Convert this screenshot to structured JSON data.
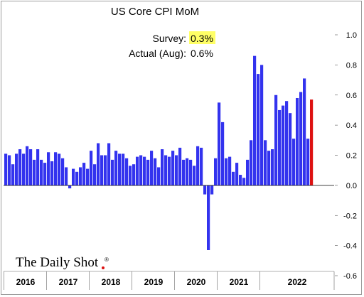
{
  "chart_data": {
    "type": "bar",
    "title": "US Core CPI MoM",
    "xlabel": "",
    "ylabel": "",
    "ylim": [
      -0.6,
      1.0
    ],
    "yticks": [
      {
        "value": 1.0,
        "label": "1.0"
      },
      {
        "value": 0.8,
        "label": "0.8"
      },
      {
        "value": 0.6,
        "label": "0.6"
      },
      {
        "value": 0.4,
        "label": "0.4"
      },
      {
        "value": 0.2,
        "label": "0.2"
      },
      {
        "value": 0.0,
        "label": "0.0"
      },
      {
        "value": -0.2,
        "label": "-0.2"
      },
      {
        "value": -0.4,
        "label": "-0.4"
      },
      {
        "value": -0.6,
        "label": "-0.6"
      }
    ],
    "year_labels": [
      "2016",
      "2017",
      "2018",
      "2019",
      "2020",
      "2021",
      "2022"
    ],
    "grid": false,
    "colors": {
      "bars": "#3333ee",
      "highlight": "#dd1111",
      "survey_highlight": "#ffff66"
    },
    "series": [
      {
        "values": [
          0.21,
          0.2,
          0.14,
          0.21,
          0.24,
          0.21,
          0.26,
          0.24,
          0.17,
          0.24,
          0.17,
          0.15,
          0.22,
          0.16,
          0.22,
          0.21,
          0.18,
          0.12,
          -0.02,
          0.11,
          0.09,
          0.12,
          0.15,
          0.11,
          0.23,
          0.14,
          0.28,
          0.2,
          0.2,
          0.28,
          0.17,
          0.23,
          0.21,
          0.21,
          0.18,
          0.13,
          0.14,
          0.19,
          0.2,
          0.19,
          0.17,
          0.23,
          0.18,
          0.12,
          0.24,
          0.2,
          0.19,
          0.23,
          0.2,
          0.25,
          0.17,
          0.18,
          0.17,
          0.13,
          0.26,
          0.25,
          -0.06,
          -0.43,
          -0.06,
          0.18,
          0.55,
          0.42,
          0.18,
          0.19,
          0.09,
          0.15,
          0.07,
          0.05,
          0.17,
          0.3,
          0.86,
          0.74,
          0.8,
          0.3,
          0.23,
          0.24,
          0.6,
          0.5,
          0.53,
          0.56,
          0.48,
          0.31,
          0.58,
          0.62,
          0.71,
          0.31,
          0.57
        ]
      }
    ],
    "annotation": {
      "survey_label": "Survey:",
      "survey_value": "0.3%",
      "actual_label": "Actual (Aug):",
      "actual_value": "0.6%"
    },
    "source": "The Daily Shot",
    "source_mark": "®"
  }
}
